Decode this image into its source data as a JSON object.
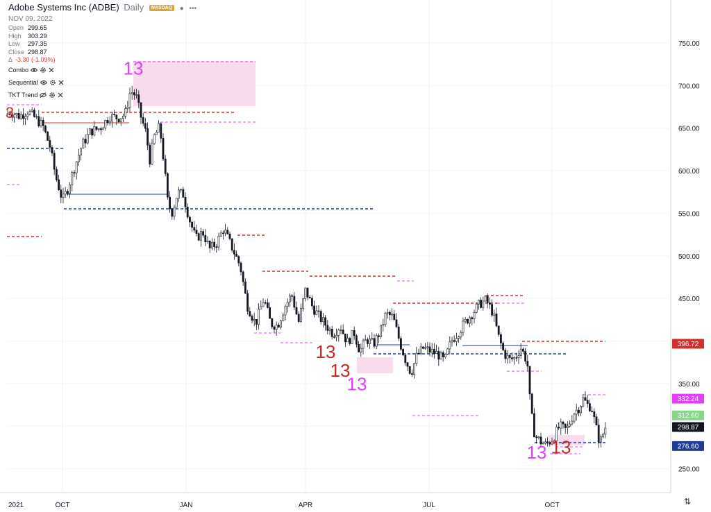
{
  "header": {
    "symbol": "Adobe Systems Inc (ADBE)",
    "interval": "Daily",
    "exchange": "NASDAQ",
    "menu_icon": "more-dots-icon",
    "date": "NOV 09, 2022"
  },
  "ohlc": {
    "open_label": "Open",
    "open": "299.65",
    "high_label": "High",
    "high": "303.29",
    "low_label": "Low",
    "low": "297.35",
    "close_label": "Close",
    "close": "298.87",
    "change_label": "Δ",
    "change": "-3.30 (-1.09%)"
  },
  "indicators": [
    {
      "label": "Combo"
    },
    {
      "label": "Sequential"
    },
    {
      "label": "TKT Trend"
    }
  ],
  "colors": {
    "up": "#131722",
    "down": "#131722",
    "red": "#d32f2f",
    "blue": "#1f3b96",
    "magenta": "#e040fb",
    "pink_box": "#f8d7ec"
  },
  "chart_data": {
    "type": "candlestick",
    "ylim": [
      212,
      795
    ],
    "y_ticks": [
      "750.00",
      "700.00",
      "650.00",
      "600.00",
      "550.00",
      "500.00",
      "450.00",
      "400.00",
      "350.00",
      "300.00",
      "250.00"
    ],
    "x_ticks": [
      "2021",
      "OCT",
      "JAN",
      "APR",
      "JUL",
      "OCT"
    ],
    "price_labels": [
      {
        "text": "396.72",
        "value": 396.72,
        "color": "#d32f2f"
      },
      {
        "text": "332.24",
        "value": 332.24,
        "color": "#e040fb"
      },
      {
        "text": "312.60",
        "value": 312.6,
        "color": "#8bd48b"
      },
      {
        "text": "298.87",
        "value": 298.87,
        "color": "#131722"
      },
      {
        "text": "276.60",
        "value": 276.6,
        "color": "#1f3b96"
      }
    ],
    "path": [
      [
        0,
        660
      ],
      [
        14,
        669
      ],
      [
        28,
        664
      ],
      [
        40,
        670
      ],
      [
        52,
        661
      ],
      [
        62,
        652
      ],
      [
        72,
        628
      ],
      [
        80,
        594
      ],
      [
        90,
        565
      ],
      [
        98,
        580
      ],
      [
        108,
        606
      ],
      [
        118,
        630
      ],
      [
        130,
        646
      ],
      [
        144,
        650
      ],
      [
        158,
        664
      ],
      [
        170,
        662
      ],
      [
        180,
        666
      ],
      [
        188,
        694
      ],
      [
        196,
        688
      ],
      [
        202,
        666
      ],
      [
        210,
        645
      ],
      [
        216,
        612
      ],
      [
        222,
        640
      ],
      [
        230,
        652
      ],
      [
        236,
        610
      ],
      [
        242,
        560
      ],
      [
        248,
        551
      ],
      [
        256,
        575
      ],
      [
        264,
        572
      ],
      [
        272,
        545
      ],
      [
        282,
        520
      ],
      [
        292,
        528
      ],
      [
        302,
        508
      ],
      [
        312,
        515
      ],
      [
        322,
        532
      ],
      [
        334,
        510
      ],
      [
        346,
        488
      ],
      [
        356,
        442
      ],
      [
        368,
        420
      ],
      [
        380,
        450
      ],
      [
        390,
        420
      ],
      [
        400,
        418
      ],
      [
        410,
        440
      ],
      [
        420,
        455
      ],
      [
        430,
        422
      ],
      [
        440,
        460
      ],
      [
        450,
        440
      ],
      [
        460,
        428
      ],
      [
        470,
        418
      ],
      [
        480,
        408
      ],
      [
        490,
        418
      ],
      [
        500,
        398
      ],
      [
        510,
        410
      ],
      [
        518,
        388
      ],
      [
        528,
        402
      ],
      [
        538,
        396
      ],
      [
        548,
        412
      ],
      [
        556,
        432
      ],
      [
        566,
        428
      ],
      [
        576,
        398
      ],
      [
        584,
        378
      ],
      [
        592,
        362
      ],
      [
        600,
        382
      ],
      [
        610,
        392
      ],
      [
        620,
        388
      ],
      [
        630,
        385
      ],
      [
        640,
        376
      ],
      [
        650,
        400
      ],
      [
        660,
        410
      ],
      [
        670,
        422
      ],
      [
        680,
        432
      ],
      [
        690,
        443
      ],
      [
        700,
        448
      ],
      [
        710,
        433
      ],
      [
        718,
        405
      ],
      [
        726,
        385
      ],
      [
        734,
        378
      ],
      [
        742,
        380
      ],
      [
        750,
        392
      ],
      [
        756,
        382
      ],
      [
        760,
        370
      ],
      [
        764,
        320
      ],
      [
        770,
        290
      ],
      [
        778,
        282
      ],
      [
        786,
        278
      ],
      [
        796,
        285
      ],
      [
        806,
        300
      ],
      [
        816,
        295
      ],
      [
        826,
        315
      ],
      [
        834,
        322
      ],
      [
        840,
        332
      ],
      [
        846,
        325
      ],
      [
        852,
        322
      ],
      [
        858,
        300
      ],
      [
        864,
        280
      ],
      [
        872,
        299
      ]
    ]
  },
  "annotations": {
    "sequential_13": [
      {
        "text": "13",
        "x": 192,
        "price": 713,
        "color": "#e040fb"
      },
      {
        "text": "13",
        "x": 469,
        "price": 380,
        "color": "#c62828"
      },
      {
        "text": "13",
        "x": 490,
        "price": 358,
        "color": "#c62828"
      },
      {
        "text": "13",
        "x": 514,
        "price": 342,
        "color": "#e040fb"
      },
      {
        "text": "13",
        "x": 773,
        "price": 262,
        "color": "#e040fb"
      },
      {
        "text": "13",
        "x": 808,
        "price": 268,
        "color": "#c62828"
      }
    ],
    "setup_3": {
      "text": "3",
      "x": 14,
      "price": 662,
      "color": "#c62828"
    }
  }
}
